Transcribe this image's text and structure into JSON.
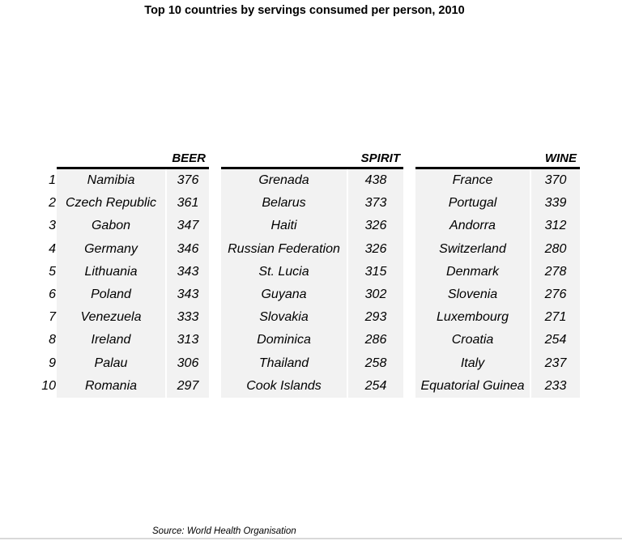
{
  "chart_data": {
    "type": "table",
    "title": "Top 10 countries by servings consumed per person, 2010",
    "ranks": [
      "1",
      "2",
      "3",
      "4",
      "5",
      "6",
      "7",
      "8",
      "9",
      "10"
    ],
    "tables": [
      {
        "header": "BEER",
        "rows": [
          {
            "country": "Namibia",
            "value": 376
          },
          {
            "country": "Czech Republic",
            "value": 361
          },
          {
            "country": "Gabon",
            "value": 347
          },
          {
            "country": "Germany",
            "value": 346
          },
          {
            "country": "Lithuania",
            "value": 343
          },
          {
            "country": "Poland",
            "value": 343
          },
          {
            "country": "Venezuela",
            "value": 333
          },
          {
            "country": "Ireland",
            "value": 313
          },
          {
            "country": "Palau",
            "value": 306
          },
          {
            "country": "Romania",
            "value": 297
          }
        ]
      },
      {
        "header": "SPIRIT",
        "rows": [
          {
            "country": "Grenada",
            "value": 438
          },
          {
            "country": "Belarus",
            "value": 373
          },
          {
            "country": "Haiti",
            "value": 326
          },
          {
            "country": "Russian Federation",
            "value": 326
          },
          {
            "country": "St. Lucia",
            "value": 315
          },
          {
            "country": "Guyana",
            "value": 302
          },
          {
            "country": "Slovakia",
            "value": 293
          },
          {
            "country": "Dominica",
            "value": 286
          },
          {
            "country": "Thailand",
            "value": 258
          },
          {
            "country": "Cook Islands",
            "value": 254
          }
        ]
      },
      {
        "header": "WINE",
        "rows": [
          {
            "country": "France",
            "value": 370
          },
          {
            "country": "Portugal",
            "value": 339
          },
          {
            "country": "Andorra",
            "value": 312
          },
          {
            "country": "Switzerland",
            "value": 280
          },
          {
            "country": "Denmark",
            "value": 278
          },
          {
            "country": "Slovenia",
            "value": 276
          },
          {
            "country": "Luxembourg",
            "value": 271
          },
          {
            "country": "Croatia",
            "value": 254
          },
          {
            "country": "Italy",
            "value": 237
          },
          {
            "country": "Equatorial Guinea",
            "value": 233
          }
        ]
      }
    ],
    "source": "Source: World Health Organisation"
  }
}
